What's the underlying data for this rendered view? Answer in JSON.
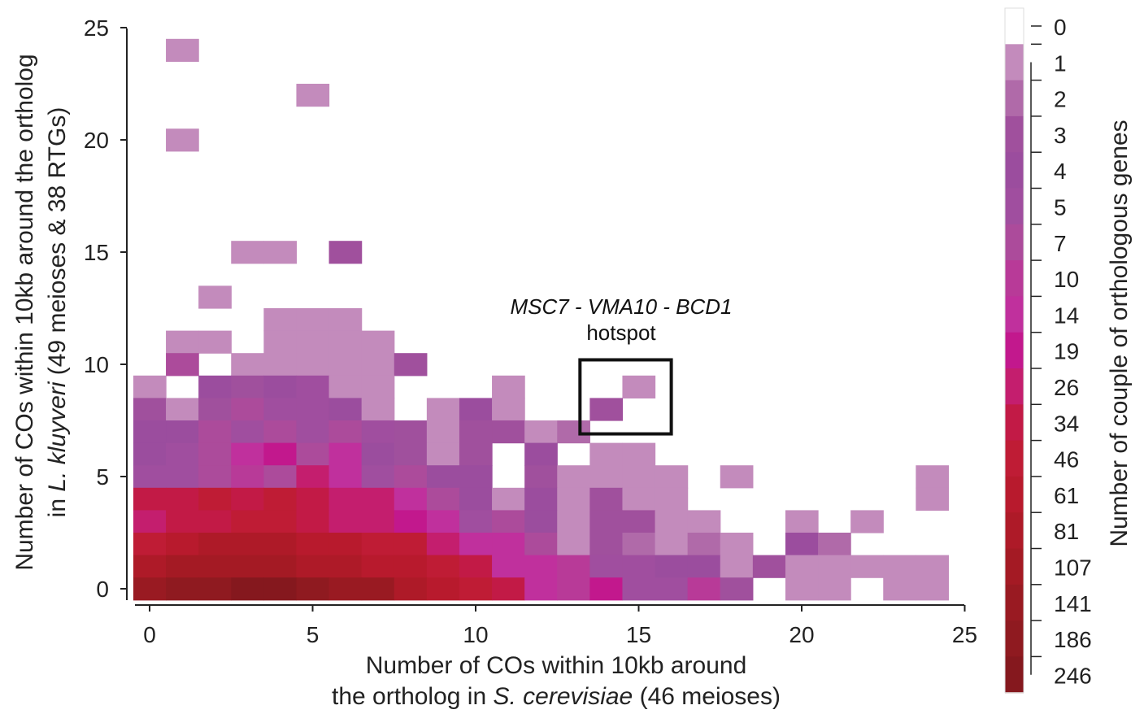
{
  "chart_data": {
    "type": "heatmap",
    "xlabel": {
      "line1": "Number of COs within 10kb around",
      "line2_pre": "the ortholog in ",
      "line2_italic": "S. cerevisiae",
      "line2_post": " (46 meioses)"
    },
    "ylabel": {
      "line1": "Number of COs within 10kb around the ortholog",
      "line2_pre": "in ",
      "line2_italic": "L. kluyveri",
      "line2_post": " (49 meioses & 38 RTGs)"
    },
    "xlim": [
      0,
      25
    ],
    "ylim": [
      0,
      25
    ],
    "xticks": [
      0,
      5,
      10,
      15,
      20,
      25
    ],
    "yticks": [
      0,
      5,
      10,
      15,
      20,
      25
    ],
    "colorbar": {
      "title": "Number of couple of orthologous genes",
      "labels": [
        "0",
        "1",
        "2",
        "3",
        "4",
        "5",
        "7",
        "10",
        "14",
        "19",
        "26",
        "34",
        "46",
        "61",
        "81",
        "107",
        "141",
        "186",
        "246"
      ],
      "colors": [
        "#ffffff",
        "#c38bbc",
        "#b06aa9",
        "#a0509d",
        "#9b4d9e",
        "#a04e9f",
        "#ac4b9b",
        "#b83a98",
        "#c0309d",
        "#c2188d",
        "#c41e6e",
        "#c21a46",
        "#bf1c35",
        "#b81a2d",
        "#ae1a28",
        "#a41a24",
        "#991a22",
        "#8f1a20",
        "#85181e"
      ]
    },
    "annotation": {
      "line1": "MSC7 - VMA10 - BCD1",
      "line2": "hotspot",
      "box_x": [
        13.2,
        16.0
      ],
      "box_y": [
        6.9,
        10.2
      ]
    },
    "cells": [
      [
        1,
        24,
        1
      ],
      [
        5,
        22,
        1
      ],
      [
        1,
        20,
        1
      ],
      [
        3,
        15,
        1
      ],
      [
        4,
        15,
        1
      ],
      [
        6,
        15,
        3
      ],
      [
        2,
        13,
        1
      ],
      [
        4,
        12,
        1
      ],
      [
        5,
        12,
        1
      ],
      [
        6,
        12,
        1
      ],
      [
        1,
        11,
        1
      ],
      [
        2,
        11,
        1
      ],
      [
        4,
        11,
        1
      ],
      [
        5,
        11,
        1
      ],
      [
        6,
        11,
        1
      ],
      [
        7,
        11,
        1
      ],
      [
        1,
        10,
        7
      ],
      [
        3,
        10,
        1
      ],
      [
        4,
        10,
        1
      ],
      [
        5,
        10,
        1
      ],
      [
        6,
        10,
        1
      ],
      [
        7,
        10,
        1
      ],
      [
        8,
        10,
        3
      ],
      [
        0,
        9,
        1
      ],
      [
        2,
        9,
        4
      ],
      [
        3,
        9,
        3
      ],
      [
        4,
        9,
        4
      ],
      [
        5,
        9,
        5
      ],
      [
        6,
        9,
        1
      ],
      [
        7,
        9,
        1
      ],
      [
        11,
        9,
        1
      ],
      [
        15,
        9,
        1
      ],
      [
        0,
        8,
        3
      ],
      [
        1,
        8,
        1
      ],
      [
        2,
        8,
        3
      ],
      [
        3,
        8,
        7
      ],
      [
        4,
        8,
        5
      ],
      [
        5,
        8,
        5
      ],
      [
        6,
        8,
        4
      ],
      [
        7,
        8,
        1
      ],
      [
        9,
        8,
        1
      ],
      [
        10,
        8,
        4
      ],
      [
        11,
        8,
        1
      ],
      [
        14,
        8,
        3
      ],
      [
        0,
        7,
        4
      ],
      [
        1,
        7,
        4
      ],
      [
        2,
        7,
        7
      ],
      [
        3,
        7,
        5
      ],
      [
        4,
        7,
        7
      ],
      [
        5,
        7,
        5
      ],
      [
        6,
        7,
        7
      ],
      [
        7,
        7,
        5
      ],
      [
        8,
        7,
        3
      ],
      [
        9,
        7,
        1
      ],
      [
        10,
        7,
        3
      ],
      [
        11,
        7,
        3
      ],
      [
        12,
        7,
        1
      ],
      [
        13,
        7,
        2
      ],
      [
        0,
        6,
        4
      ],
      [
        1,
        6,
        5
      ],
      [
        2,
        6,
        7
      ],
      [
        3,
        6,
        14
      ],
      [
        4,
        6,
        19
      ],
      [
        5,
        6,
        7
      ],
      [
        6,
        6,
        14
      ],
      [
        7,
        6,
        4
      ],
      [
        8,
        6,
        3
      ],
      [
        9,
        6,
        1
      ],
      [
        10,
        6,
        3
      ],
      [
        12,
        6,
        4
      ],
      [
        14,
        6,
        1
      ],
      [
        15,
        6,
        1
      ],
      [
        0,
        5,
        5
      ],
      [
        1,
        5,
        5
      ],
      [
        2,
        5,
        7
      ],
      [
        3,
        5,
        10
      ],
      [
        4,
        5,
        7
      ],
      [
        5,
        5,
        26
      ],
      [
        6,
        5,
        14
      ],
      [
        7,
        5,
        5
      ],
      [
        8,
        5,
        7
      ],
      [
        9,
        5,
        4
      ],
      [
        10,
        5,
        4
      ],
      [
        12,
        5,
        3
      ],
      [
        13,
        5,
        1
      ],
      [
        14,
        5,
        1
      ],
      [
        15,
        5,
        1
      ],
      [
        16,
        5,
        1
      ],
      [
        18,
        5,
        1
      ],
      [
        24,
        5,
        1
      ],
      [
        0,
        4,
        34
      ],
      [
        1,
        4,
        34
      ],
      [
        2,
        4,
        46
      ],
      [
        3,
        4,
        34
      ],
      [
        4,
        4,
        46
      ],
      [
        5,
        4,
        34
      ],
      [
        6,
        4,
        26
      ],
      [
        7,
        4,
        26
      ],
      [
        8,
        4,
        14
      ],
      [
        9,
        4,
        7
      ],
      [
        10,
        4,
        4
      ],
      [
        11,
        4,
        1
      ],
      [
        12,
        4,
        4
      ],
      [
        13,
        4,
        1
      ],
      [
        14,
        4,
        3
      ],
      [
        15,
        4,
        1
      ],
      [
        16,
        4,
        1
      ],
      [
        24,
        4,
        1
      ],
      [
        0,
        3,
        26
      ],
      [
        1,
        3,
        34
      ],
      [
        2,
        3,
        34
      ],
      [
        3,
        3,
        46
      ],
      [
        4,
        3,
        46
      ],
      [
        5,
        3,
        34
      ],
      [
        6,
        3,
        26
      ],
      [
        7,
        3,
        26
      ],
      [
        8,
        3,
        19
      ],
      [
        9,
        3,
        14
      ],
      [
        10,
        3,
        5
      ],
      [
        11,
        3,
        7
      ],
      [
        12,
        3,
        4
      ],
      [
        13,
        3,
        1
      ],
      [
        14,
        3,
        3
      ],
      [
        15,
        3,
        3
      ],
      [
        16,
        3,
        1
      ],
      [
        17,
        3,
        1
      ],
      [
        20,
        3,
        1
      ],
      [
        22,
        3,
        1
      ],
      [
        0,
        2,
        46
      ],
      [
        1,
        2,
        61
      ],
      [
        2,
        2,
        81
      ],
      [
        3,
        2,
        81
      ],
      [
        4,
        2,
        81
      ],
      [
        5,
        2,
        61
      ],
      [
        6,
        2,
        61
      ],
      [
        7,
        2,
        46
      ],
      [
        8,
        2,
        46
      ],
      [
        9,
        2,
        26
      ],
      [
        10,
        2,
        14
      ],
      [
        11,
        2,
        14
      ],
      [
        12,
        2,
        7
      ],
      [
        13,
        2,
        1
      ],
      [
        14,
        2,
        3
      ],
      [
        15,
        2,
        2
      ],
      [
        16,
        2,
        1
      ],
      [
        17,
        2,
        2
      ],
      [
        18,
        2,
        1
      ],
      [
        20,
        2,
        4
      ],
      [
        21,
        2,
        2
      ],
      [
        0,
        1,
        81
      ],
      [
        1,
        1,
        107
      ],
      [
        2,
        1,
        107
      ],
      [
        3,
        1,
        107
      ],
      [
        4,
        1,
        107
      ],
      [
        5,
        1,
        81
      ],
      [
        6,
        1,
        81
      ],
      [
        7,
        1,
        61
      ],
      [
        8,
        1,
        61
      ],
      [
        9,
        1,
        46
      ],
      [
        10,
        1,
        34
      ],
      [
        11,
        1,
        14
      ],
      [
        12,
        1,
        14
      ],
      [
        13,
        1,
        10
      ],
      [
        14,
        1,
        5
      ],
      [
        15,
        1,
        5
      ],
      [
        16,
        1,
        4
      ],
      [
        17,
        1,
        4
      ],
      [
        18,
        1,
        1
      ],
      [
        19,
        1,
        3
      ],
      [
        20,
        1,
        1
      ],
      [
        21,
        1,
        1
      ],
      [
        22,
        1,
        1
      ],
      [
        23,
        1,
        1
      ],
      [
        24,
        1,
        1
      ],
      [
        0,
        0,
        141
      ],
      [
        1,
        0,
        186
      ],
      [
        2,
        0,
        186
      ],
      [
        3,
        0,
        246
      ],
      [
        4,
        0,
        246
      ],
      [
        5,
        0,
        186
      ],
      [
        6,
        0,
        141
      ],
      [
        7,
        0,
        141
      ],
      [
        8,
        0,
        81
      ],
      [
        9,
        0,
        61
      ],
      [
        10,
        0,
        46
      ],
      [
        11,
        0,
        34
      ],
      [
        12,
        0,
        14
      ],
      [
        13,
        0,
        10
      ],
      [
        14,
        0,
        19
      ],
      [
        15,
        0,
        5
      ],
      [
        16,
        0,
        5
      ],
      [
        17,
        0,
        10
      ],
      [
        18,
        0,
        3
      ],
      [
        20,
        0,
        1
      ],
      [
        21,
        0,
        1
      ],
      [
        23,
        0,
        1
      ],
      [
        24,
        0,
        1
      ]
    ]
  }
}
